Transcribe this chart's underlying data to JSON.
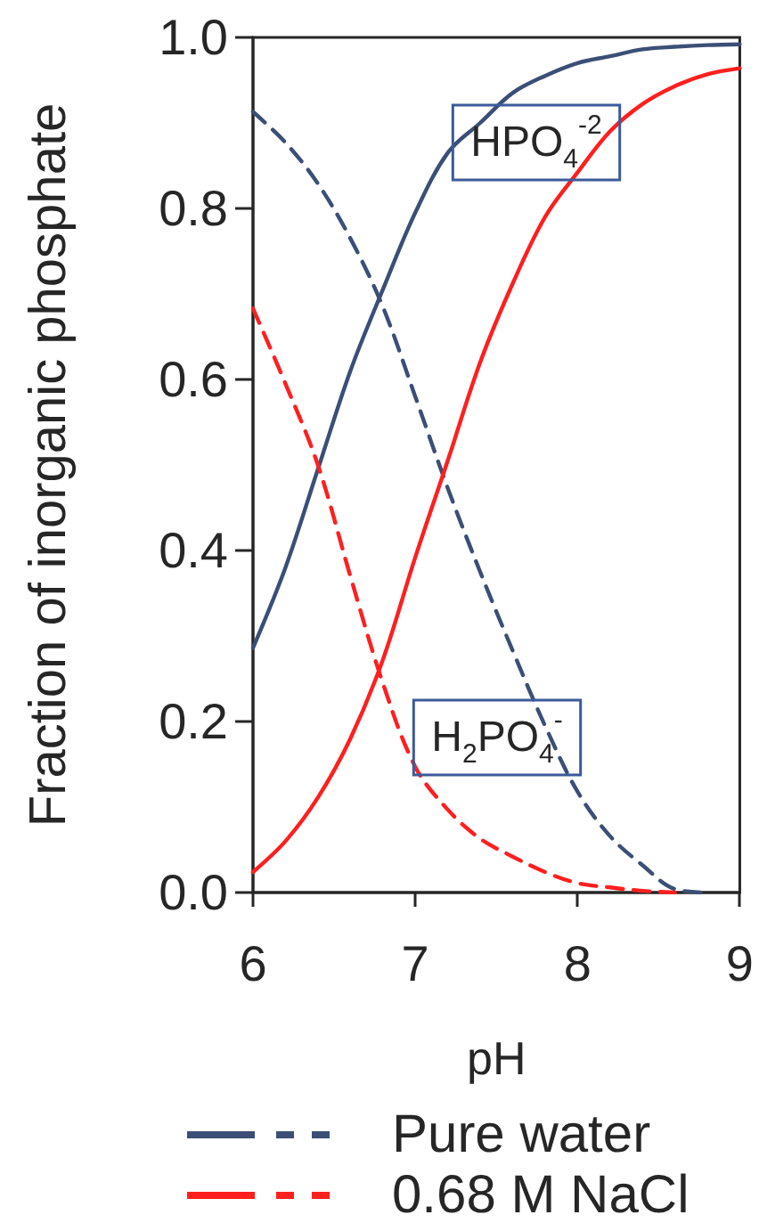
{
  "chart_data": {
    "type": "line",
    "xlabel": "pH",
    "ylabel": "Fraction of inorganic phosphate",
    "x": [
      6.0,
      6.2,
      6.4,
      6.6,
      6.8,
      7.0,
      7.2,
      7.4,
      7.6,
      7.8,
      8.0,
      8.2,
      8.4,
      8.6,
      8.8,
      9.0
    ],
    "xlim": [
      6,
      9
    ],
    "xticks": [
      6,
      7,
      8,
      9
    ],
    "ylim": [
      0,
      1
    ],
    "yticks": [
      {
        "value": 0,
        "label": "0.0"
      },
      {
        "value": 0.2,
        "label": "0.2"
      },
      {
        "value": 0.4,
        "label": "0.4"
      },
      {
        "value": 0.6,
        "label": "0.6"
      },
      {
        "value": 0.8,
        "label": "0.8"
      },
      {
        "value": 1,
        "label": "1.0"
      }
    ],
    "series": [
      {
        "name": "Pure water",
        "color": "#3b4f76",
        "line_style": "solid",
        "values": [
          0.286,
          0.38,
          0.495,
          0.61,
          0.705,
          0.795,
          0.865,
          0.9,
          0.935,
          0.955,
          0.97,
          0.978,
          0.986,
          0.989,
          0.991,
          0.992
        ]
      },
      {
        "color": "#3b4f76",
        "line_style": "dashed",
        "values": [
          0.913,
          0.877,
          0.829,
          0.765,
          0.685,
          0.58,
          0.473,
          0.375,
          0.283,
          0.195,
          0.118,
          0.066,
          0.032,
          0.004,
          0,
          null
        ]
      },
      {
        "name": "0.68 M NaCl",
        "color": "#ff1f1f",
        "line_style": "solid",
        "values": [
          0.024,
          0.06,
          0.111,
          0.18,
          0.272,
          0.392,
          0.505,
          0.62,
          0.712,
          0.79,
          0.842,
          0.89,
          0.922,
          0.943,
          0.957,
          0.964
        ]
      },
      {
        "color": "#ff1f1f",
        "line_style": "dashed",
        "values": [
          0.683,
          0.595,
          0.5,
          0.37,
          0.245,
          0.147,
          0.097,
          0.063,
          0.042,
          0.024,
          0.011,
          0.006,
          0.002,
          0,
          null,
          null
        ]
      }
    ],
    "annotations": [
      "HPO$_{4}$$^{-2}$",
      "H$_{2}$PO$_{4}$$^{-}$"
    ],
    "legend": "bottom",
    "marker": "none"
  }
}
